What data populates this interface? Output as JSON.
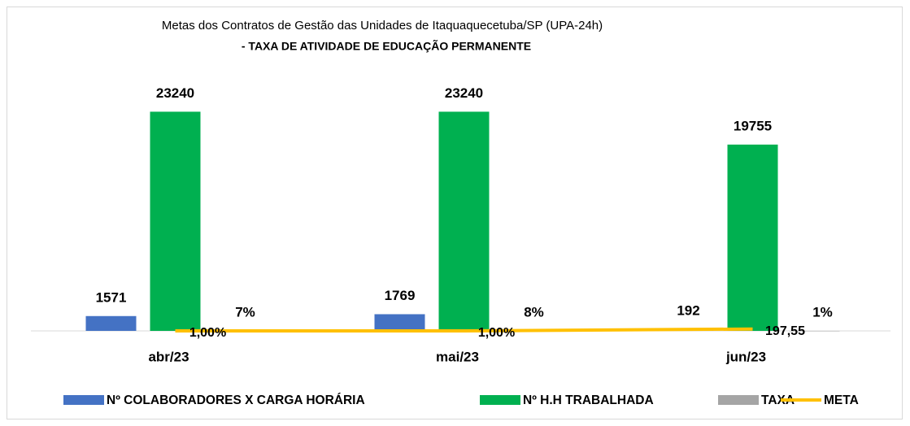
{
  "chart_data": {
    "type": "bar",
    "title": "Metas dos Contratos de Gestão das Unidades de Itaquaquecetuba/SP (UPA-24h)",
    "subtitle": "- TAXA DE ATIVIDADE DE EDUCAÇÃO PERMANENTE",
    "categories": [
      "abr/23",
      "mai/23",
      "jun/23"
    ],
    "ylim": [
      0,
      25000
    ],
    "series": [
      {
        "name": "Nº COLABORADORES X CARGA HORÁRIA",
        "color": "#4472c4",
        "type": "bar",
        "values": [
          1571,
          1769,
          192
        ]
      },
      {
        "name": "Nº H.H TRABALHADA",
        "color": "#00b050",
        "type": "bar",
        "values": [
          23240,
          23240,
          19755
        ]
      },
      {
        "name": "TAXA",
        "color": "#a5a5a5",
        "type": "bar",
        "values": [
          7,
          8,
          1
        ],
        "value_labels": [
          "7%",
          "8%",
          "1%"
        ]
      },
      {
        "name": "META",
        "color": "#ffc000",
        "type": "line",
        "values": [
          1,
          1,
          197.55
        ],
        "value_labels": [
          "1,00%",
          "1,00%",
          "197,55"
        ]
      }
    ]
  }
}
